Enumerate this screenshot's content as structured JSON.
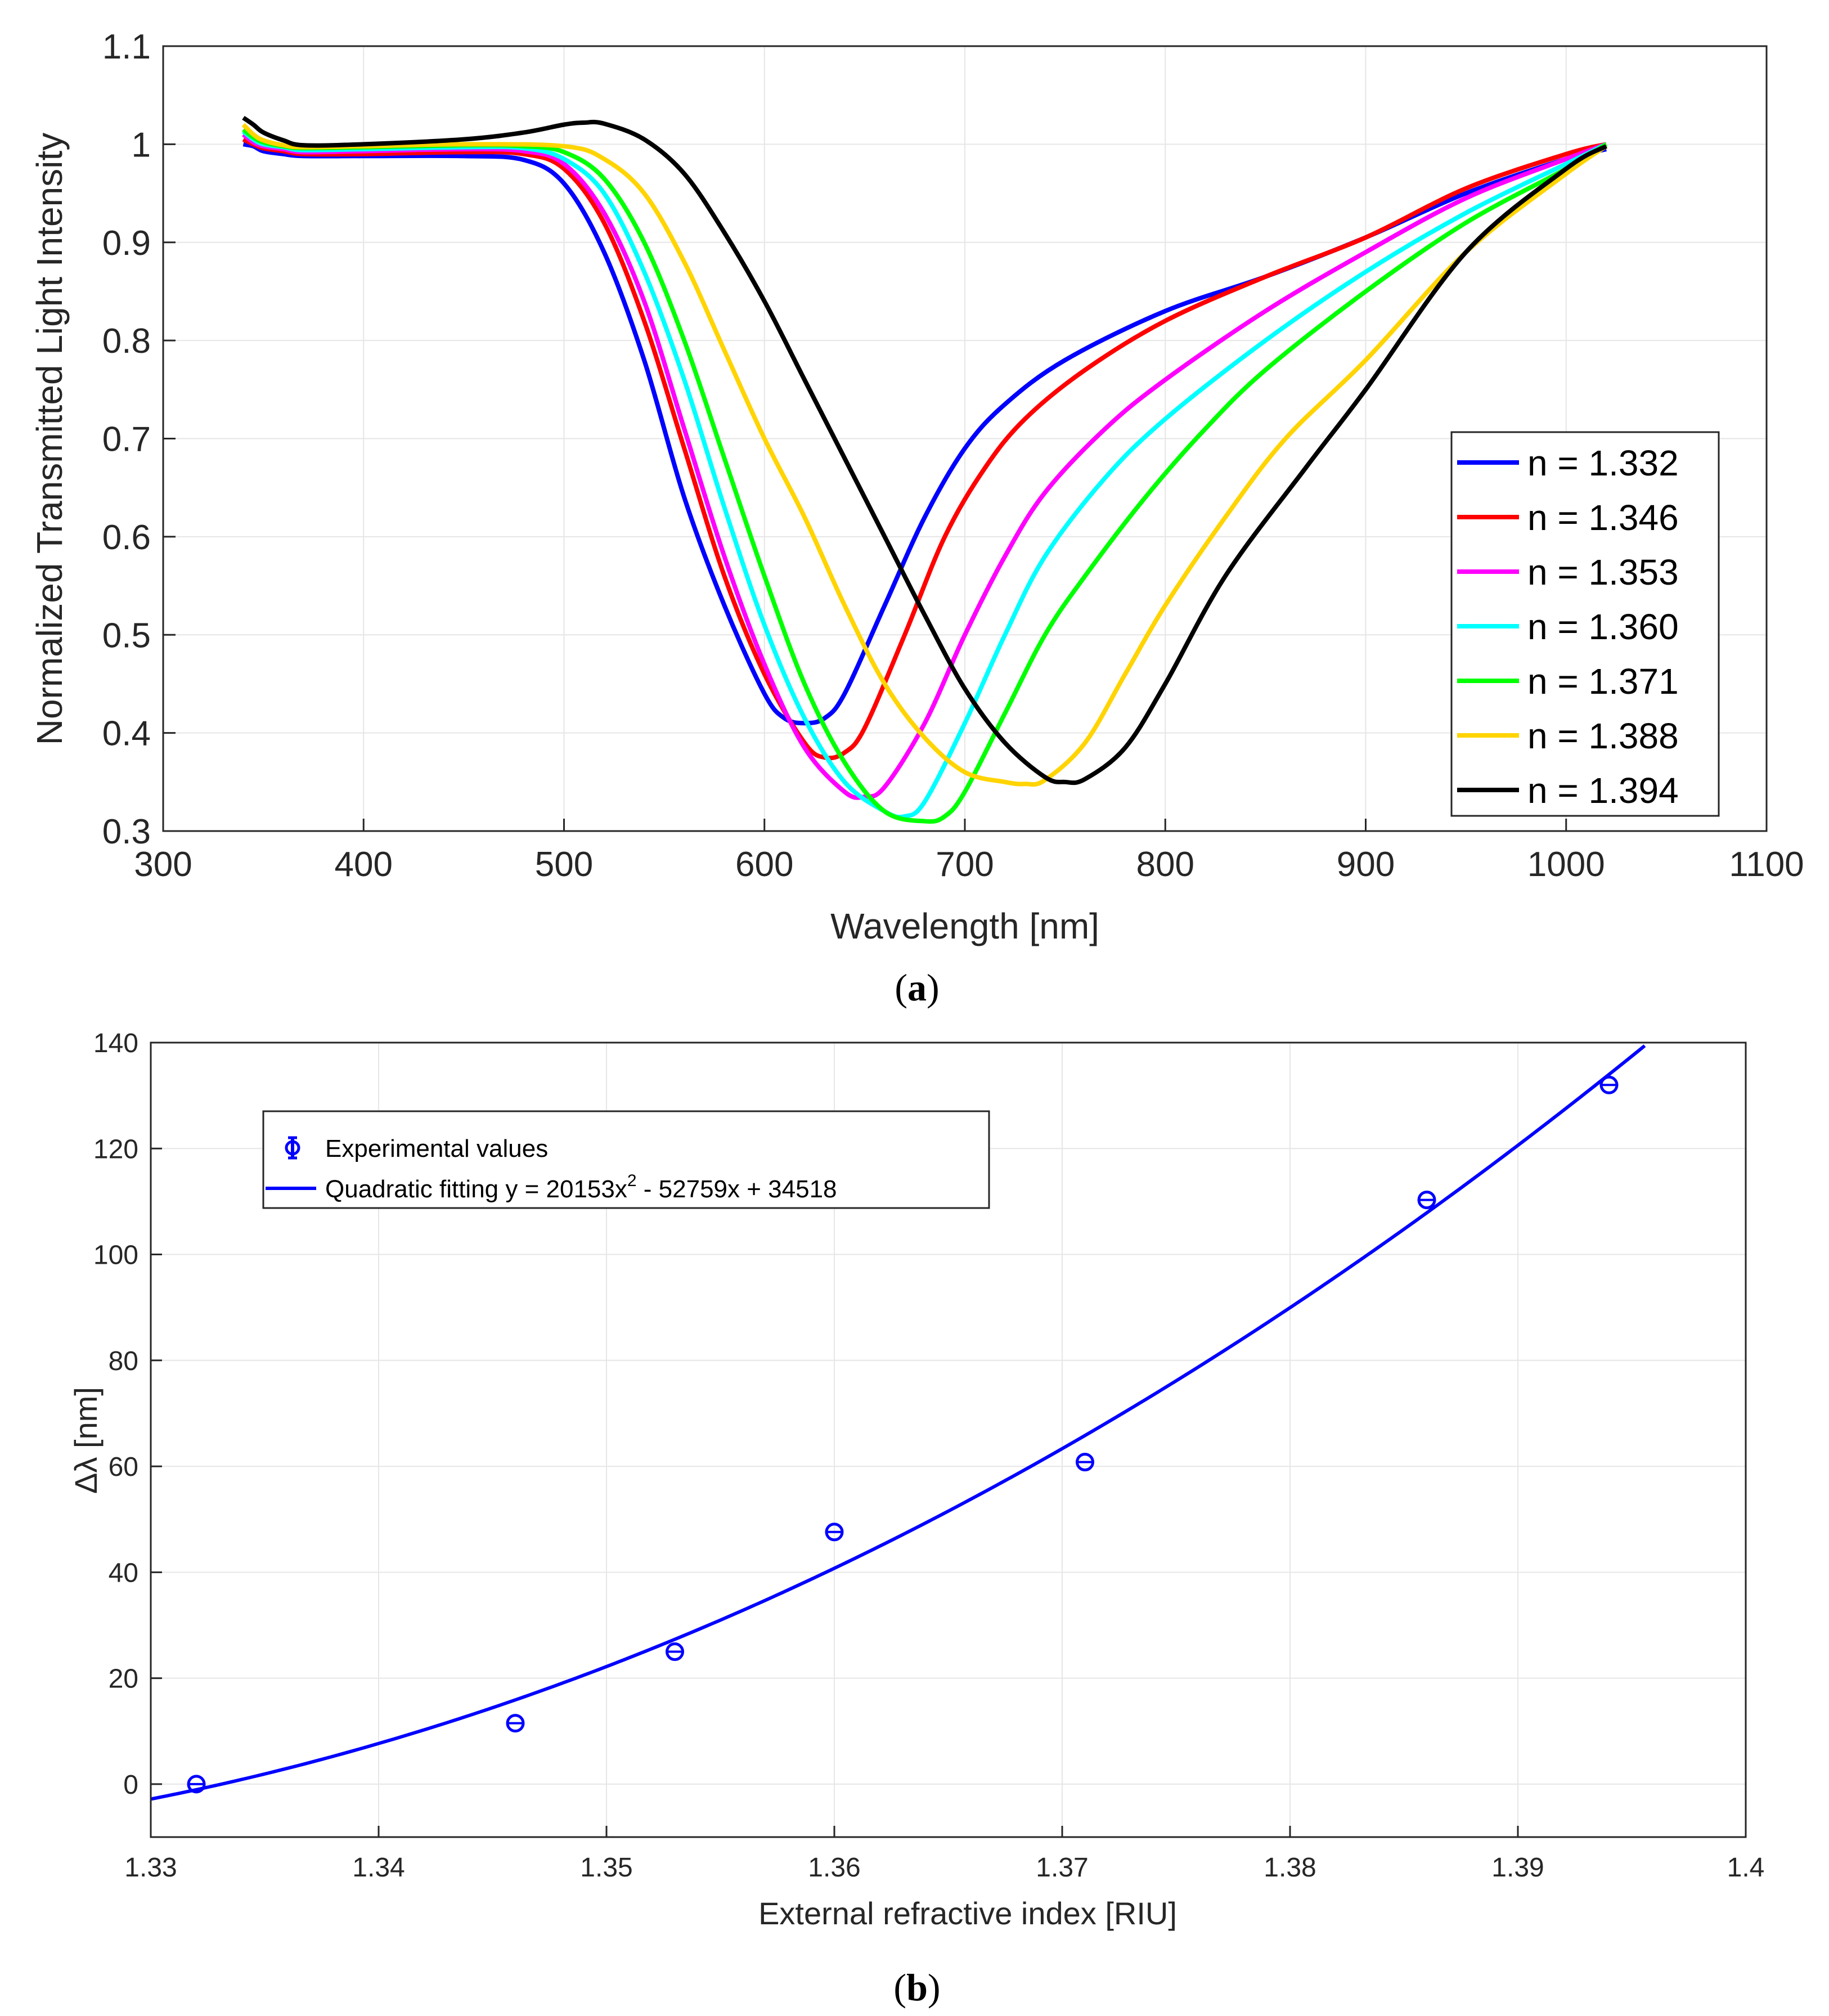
{
  "chart_data": [
    {
      "type": "line",
      "caption_letter": "a",
      "xlabel": "Wavelength [nm]",
      "ylabel": "Normalized Transmitted Light Intensity",
      "xlim": [
        300,
        1100
      ],
      "ylim": [
        0.3,
        1.1
      ],
      "xticks": [
        "300",
        "400",
        "500",
        "600",
        "700",
        "800",
        "900",
        "1000",
        "1100"
      ],
      "yticks": [
        "0.3",
        "0.4",
        "0.5",
        "0.6",
        "0.7",
        "0.8",
        "0.9",
        "1",
        "1.1"
      ],
      "grid": true,
      "legend_position": "lower-right",
      "series": [
        {
          "name": "n = 1.332",
          "color": "#0000ff",
          "x": [
            340,
            345,
            350,
            360,
            370,
            400,
            450,
            480,
            500,
            520,
            540,
            560,
            580,
            600,
            610,
            620,
            630,
            640,
            660,
            680,
            700,
            720,
            750,
            800,
            850,
            900,
            950,
            1000,
            1020
          ],
          "y": [
            1.0,
            0.998,
            0.993,
            0.99,
            0.988,
            0.988,
            0.988,
            0.984,
            0.96,
            0.89,
            0.78,
            0.64,
            0.53,
            0.44,
            0.415,
            0.41,
            0.415,
            0.44,
            0.53,
            0.62,
            0.69,
            0.735,
            0.78,
            0.83,
            0.865,
            0.905,
            0.95,
            0.985,
            0.995
          ]
        },
        {
          "name": "n = 1.346",
          "color": "#ff0000",
          "x": [
            340,
            345,
            350,
            360,
            370,
            400,
            450,
            480,
            500,
            520,
            540,
            560,
            580,
            600,
            620,
            630,
            640,
            650,
            670,
            690,
            710,
            730,
            760,
            800,
            850,
            900,
            950,
            1000,
            1020
          ],
          "y": [
            1.005,
            1.0,
            0.996,
            0.993,
            0.99,
            0.99,
            0.992,
            0.99,
            0.975,
            0.92,
            0.82,
            0.69,
            0.56,
            0.46,
            0.39,
            0.375,
            0.38,
            0.405,
            0.5,
            0.6,
            0.67,
            0.72,
            0.77,
            0.82,
            0.865,
            0.905,
            0.955,
            0.99,
            1.0
          ]
        },
        {
          "name": "n = 1.353",
          "color": "#ff00ff",
          "x": [
            340,
            345,
            350,
            360,
            370,
            400,
            450,
            480,
            500,
            520,
            540,
            560,
            580,
            600,
            620,
            640,
            650,
            660,
            680,
            700,
            720,
            740,
            770,
            800,
            850,
            900,
            950,
            1000,
            1020
          ],
          "y": [
            1.01,
            1.002,
            0.998,
            0.995,
            0.992,
            0.993,
            0.995,
            0.993,
            0.98,
            0.93,
            0.84,
            0.71,
            0.58,
            0.47,
            0.385,
            0.34,
            0.335,
            0.345,
            0.41,
            0.5,
            0.58,
            0.645,
            0.71,
            0.76,
            0.83,
            0.89,
            0.945,
            0.985,
            1.0
          ]
        },
        {
          "name": "n = 1.360",
          "color": "#00ffff",
          "x": [
            340,
            345,
            350,
            360,
            370,
            400,
            450,
            480,
            500,
            520,
            540,
            560,
            580,
            600,
            620,
            640,
            660,
            670,
            680,
            700,
            720,
            740,
            770,
            800,
            850,
            900,
            950,
            1000,
            1020
          ],
          "y": [
            1.013,
            1.005,
            1.0,
            0.997,
            0.994,
            0.995,
            0.997,
            0.996,
            0.985,
            0.95,
            0.87,
            0.76,
            0.63,
            0.51,
            0.415,
            0.35,
            0.32,
            0.315,
            0.33,
            0.41,
            0.5,
            0.58,
            0.66,
            0.72,
            0.8,
            0.87,
            0.93,
            0.98,
            1.0
          ]
        },
        {
          "name": "n = 1.371",
          "color": "#00ff00",
          "x": [
            340,
            345,
            350,
            360,
            370,
            400,
            450,
            480,
            500,
            520,
            540,
            560,
            580,
            600,
            620,
            640,
            660,
            680,
            690,
            700,
            720,
            740,
            760,
            790,
            820,
            850,
            900,
            950,
            1000,
            1020
          ],
          "y": [
            1.015,
            1.007,
            1.002,
            0.998,
            0.996,
            0.997,
            0.999,
            0.998,
            0.992,
            0.965,
            0.9,
            0.8,
            0.68,
            0.56,
            0.45,
            0.37,
            0.32,
            0.31,
            0.315,
            0.34,
            0.42,
            0.5,
            0.56,
            0.64,
            0.71,
            0.77,
            0.85,
            0.92,
            0.975,
            1.0
          ]
        },
        {
          "name": "n = 1.388",
          "color": "#ffd400",
          "x": [
            340,
            345,
            350,
            360,
            370,
            400,
            450,
            500,
            520,
            540,
            560,
            580,
            600,
            620,
            640,
            660,
            680,
            700,
            720,
            730,
            740,
            760,
            780,
            800,
            830,
            860,
            900,
            950,
            1000,
            1020
          ],
          "y": [
            1.02,
            1.01,
            1.004,
            0.999,
            0.997,
            0.998,
            1.0,
            0.998,
            0.985,
            0.95,
            0.88,
            0.79,
            0.7,
            0.62,
            0.53,
            0.45,
            0.395,
            0.36,
            0.35,
            0.348,
            0.352,
            0.39,
            0.46,
            0.53,
            0.62,
            0.7,
            0.78,
            0.89,
            0.97,
            0.998
          ]
        },
        {
          "name": "n = 1.394",
          "color": "#000000",
          "x": [
            340,
            345,
            350,
            360,
            370,
            400,
            450,
            480,
            500,
            510,
            520,
            540,
            560,
            580,
            600,
            620,
            640,
            660,
            680,
            700,
            720,
            740,
            750,
            760,
            780,
            800,
            830,
            870,
            900,
            950,
            1000,
            1020
          ],
          "y": [
            1.027,
            1.02,
            1.012,
            1.004,
            0.999,
            1.0,
            1.005,
            1.012,
            1.02,
            1.022,
            1.021,
            1.005,
            0.97,
            0.91,
            0.84,
            0.76,
            0.68,
            0.6,
            0.52,
            0.445,
            0.39,
            0.355,
            0.35,
            0.353,
            0.385,
            0.45,
            0.56,
            0.67,
            0.75,
            0.89,
            0.975,
            0.998
          ]
        }
      ]
    },
    {
      "type": "scatter",
      "caption_letter": "b",
      "xlabel": "External refractive index [RIU]",
      "ylabel": "Δλ [nm]",
      "xlim": [
        1.33,
        1.4
      ],
      "ylim": [
        -10,
        140
      ],
      "xticks": [
        "1.33",
        "1.34",
        "1.35",
        "1.36",
        "1.37",
        "1.38",
        "1.39",
        "1.4"
      ],
      "yticks": [
        "0",
        "20",
        "40",
        "60",
        "80",
        "100",
        "120",
        "140"
      ],
      "grid": true,
      "legend_position": "top-left",
      "color": "#0000ff",
      "series": [
        {
          "name": "Experimental values",
          "kind": "points_with_errorbars",
          "x": [
            1.332,
            1.346,
            1.353,
            1.36,
            1.371,
            1.386,
            1.394
          ],
          "y": [
            0,
            11.5,
            25,
            47.6,
            60.8,
            110.3,
            132
          ]
        },
        {
          "name": "Quadratic fitting y = 20153x",
          "superscript": "2",
          "name_suffix": " - 52759x + 34518",
          "kind": "fit_line",
          "coefficients": [
            20153,
            -52759,
            34518
          ]
        }
      ]
    }
  ]
}
